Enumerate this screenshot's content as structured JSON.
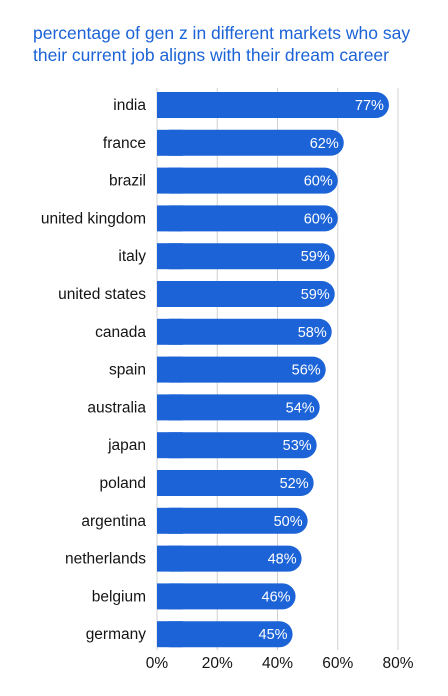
{
  "title_line1": "percentage of gen z in different markets who say",
  "title_line2": "their current job aligns with their dream career",
  "chart_data": {
    "type": "bar",
    "orientation": "horizontal",
    "title": "percentage of gen z in different markets who say their current job aligns with their dream career",
    "categories": [
      "india",
      "france",
      "brazil",
      "united kingdom",
      "italy",
      "united states",
      "canada",
      "spain",
      "australia",
      "japan",
      "poland",
      "argentina",
      "netherlands",
      "belgium",
      "germany"
    ],
    "values": [
      77,
      62,
      60,
      60,
      59,
      59,
      58,
      56,
      54,
      53,
      52,
      50,
      48,
      46,
      45
    ],
    "value_labels": [
      "77%",
      "62%",
      "60%",
      "60%",
      "59%",
      "59%",
      "58%",
      "56%",
      "54%",
      "53%",
      "52%",
      "50%",
      "48%",
      "46%",
      "45%"
    ],
    "x_ticks": [
      0,
      20,
      40,
      60,
      80
    ],
    "x_tick_labels": [
      "0%",
      "20%",
      "40%",
      "60%",
      "80%"
    ],
    "xlim": [
      0,
      80
    ],
    "grid": true,
    "bar_color": "#1b63d6",
    "title_color": "#1b63d6",
    "grid_color": "#d0d0d0"
  }
}
